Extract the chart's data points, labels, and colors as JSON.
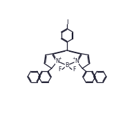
{
  "bg_color": "#ffffff",
  "line_color": "#1a1a2e",
  "line_width": 0.9,
  "figsize": [
    1.94,
    1.78
  ],
  "dpi": 100,
  "xlim": [
    0,
    10
  ],
  "ylim": [
    0,
    10
  ]
}
